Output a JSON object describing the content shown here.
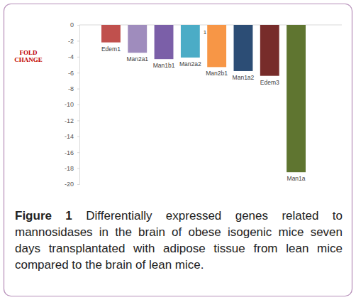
{
  "chart_data": {
    "type": "bar",
    "title": "Figure 1",
    "caption": "Differentially expressed genes related to mannosidases in the brain of obese isogenic mice seven days transplantated with adipose tissue from lean mice compared to the brain of lean mice.",
    "y_label": "FOLD CHANGE",
    "annotation": "1",
    "categories": [
      "Edem1",
      "Man2a1",
      "Man1b1",
      "Man2a2",
      "Man2b1",
      "Man1a2",
      "Edem3",
      "Man1a"
    ],
    "values": [
      -2.2,
      -3.5,
      -4.3,
      -4.1,
      -5.3,
      -5.8,
      -6.4,
      -18.5
    ],
    "colors": [
      "#c0504d",
      "#9f8cbd",
      "#7b5fa8",
      "#4bacc6",
      "#f79646",
      "#2c4d75",
      "#772c2a",
      "#5f7530"
    ],
    "ylim": [
      -20,
      0
    ],
    "yticks": [
      0,
      -2,
      -4,
      -6,
      -8,
      -10,
      -12,
      -14,
      -16,
      -18,
      -20
    ],
    "grid": false
  }
}
